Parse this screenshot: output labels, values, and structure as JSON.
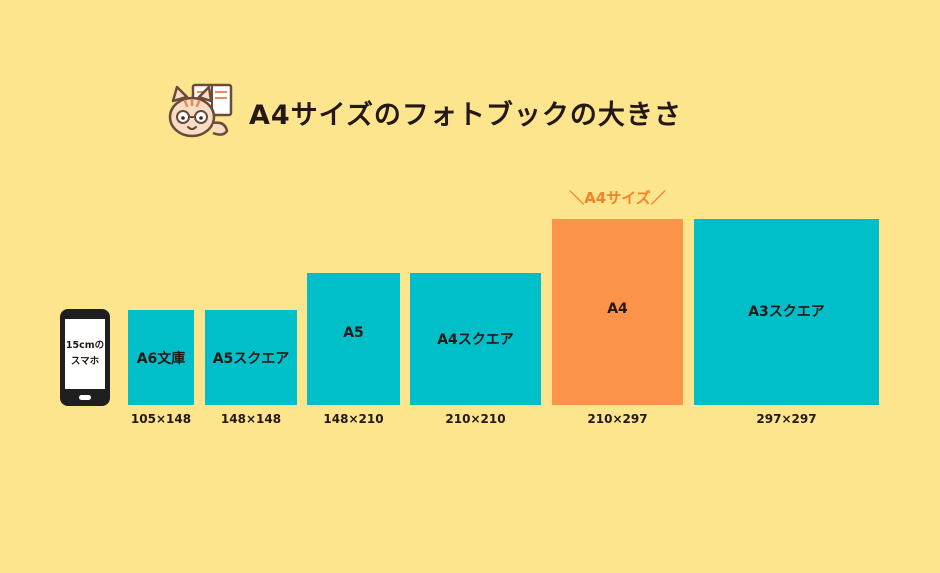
{
  "header": {
    "title": "A4サイズのフォトブックの大きさ",
    "icon": "cat-reading-book-icon"
  },
  "phone": {
    "line1": "15cmの",
    "line2": "スマホ"
  },
  "callout": "＼A4サイズ／",
  "sizes": [
    {
      "label": "A6文庫",
      "dims": "105×148"
    },
    {
      "label": "A5スクエア",
      "dims": "148×148"
    },
    {
      "label": "A5",
      "dims": "148×210"
    },
    {
      "label": "A4スクエア",
      "dims": "210×210"
    },
    {
      "label": "A4",
      "dims": "210×297"
    },
    {
      "label": "A3スクエア",
      "dims": "297×297"
    }
  ],
  "colors": {
    "background": "#fde58d",
    "teal": "#00bfc9",
    "highlight": "#fc934a",
    "callout_text": "#f5822a"
  }
}
